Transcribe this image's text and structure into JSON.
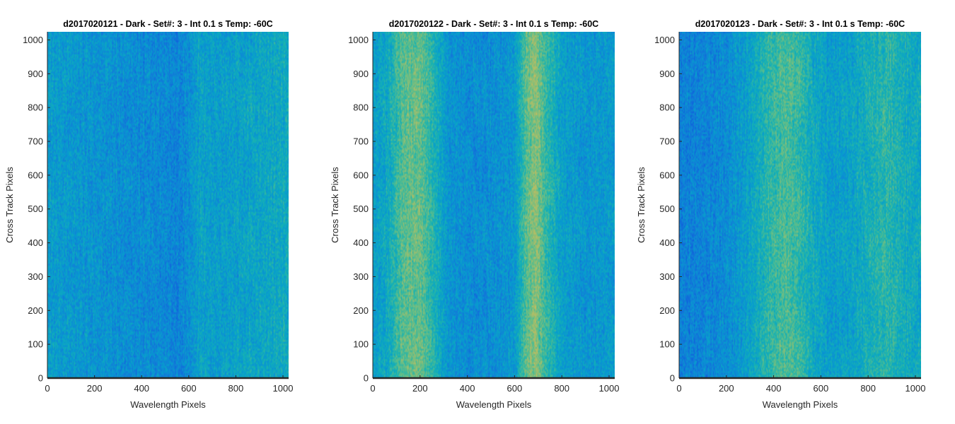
{
  "chart_data": [
    {
      "type": "heatmap",
      "title": "d2017020121 - Dark - Set#: 3 - Int 0.1 s Temp: -60C",
      "xlabel": "Wavelength Pixels",
      "ylabel": "Cross Track Pixels",
      "xlim": [
        0,
        1024
      ],
      "ylim": [
        0,
        1024
      ],
      "xticks": [
        0,
        200,
        400,
        600,
        800,
        1000
      ],
      "yticks": [
        0,
        100,
        200,
        300,
        400,
        500,
        600,
        700,
        800,
        900,
        1000
      ],
      "colormap": "parula",
      "column_profile": [
        {
          "x": 0,
          "v": 0.36
        },
        {
          "x": 100,
          "v": 0.34
        },
        {
          "x": 200,
          "v": 0.33
        },
        {
          "x": 300,
          "v": 0.31
        },
        {
          "x": 400,
          "v": 0.3
        },
        {
          "x": 500,
          "v": 0.29
        },
        {
          "x": 550,
          "v": 0.27
        },
        {
          "x": 600,
          "v": 0.31
        },
        {
          "x": 650,
          "v": 0.38
        },
        {
          "x": 700,
          "v": 0.36
        },
        {
          "x": 800,
          "v": 0.37
        },
        {
          "x": 900,
          "v": 0.39
        },
        {
          "x": 1024,
          "v": 0.41
        }
      ]
    },
    {
      "type": "heatmap",
      "title": "d2017020122 - Dark - Set#: 3 - Int 0.1 s Temp: -60C",
      "xlabel": "Wavelength Pixels",
      "ylabel": "Cross Track Pixels",
      "xlim": [
        0,
        1024
      ],
      "ylim": [
        0,
        1024
      ],
      "xticks": [
        0,
        200,
        400,
        600,
        800,
        1000
      ],
      "yticks": [
        0,
        100,
        200,
        300,
        400,
        500,
        600,
        700,
        800,
        900,
        1000
      ],
      "colormap": "parula",
      "column_profile": [
        {
          "x": 0,
          "v": 0.36
        },
        {
          "x": 60,
          "v": 0.4
        },
        {
          "x": 130,
          "v": 0.55
        },
        {
          "x": 200,
          "v": 0.57
        },
        {
          "x": 260,
          "v": 0.45
        },
        {
          "x": 320,
          "v": 0.33
        },
        {
          "x": 420,
          "v": 0.3
        },
        {
          "x": 520,
          "v": 0.31
        },
        {
          "x": 600,
          "v": 0.34
        },
        {
          "x": 650,
          "v": 0.55
        },
        {
          "x": 690,
          "v": 0.62
        },
        {
          "x": 730,
          "v": 0.5
        },
        {
          "x": 800,
          "v": 0.37
        },
        {
          "x": 900,
          "v": 0.33
        },
        {
          "x": 1024,
          "v": 0.35
        }
      ]
    },
    {
      "type": "heatmap",
      "title": "d2017020123 - Dark - Set#: 3 - Int 0.1 s Temp: -60C",
      "xlabel": "Wavelength Pixels",
      "ylabel": "Cross Track Pixels",
      "xlim": [
        0,
        1024
      ],
      "ylim": [
        0,
        1024
      ],
      "xticks": [
        0,
        200,
        400,
        600,
        800,
        1000
      ],
      "yticks": [
        0,
        100,
        200,
        300,
        400,
        500,
        600,
        700,
        800,
        900,
        1000
      ],
      "colormap": "parula",
      "column_profile": [
        {
          "x": 0,
          "v": 0.26
        },
        {
          "x": 100,
          "v": 0.27
        },
        {
          "x": 200,
          "v": 0.3
        },
        {
          "x": 300,
          "v": 0.38
        },
        {
          "x": 380,
          "v": 0.48
        },
        {
          "x": 450,
          "v": 0.53
        },
        {
          "x": 500,
          "v": 0.5
        },
        {
          "x": 560,
          "v": 0.42
        },
        {
          "x": 640,
          "v": 0.36
        },
        {
          "x": 720,
          "v": 0.38
        },
        {
          "x": 800,
          "v": 0.43
        },
        {
          "x": 880,
          "v": 0.48
        },
        {
          "x": 960,
          "v": 0.42
        },
        {
          "x": 1024,
          "v": 0.4
        }
      ]
    }
  ]
}
